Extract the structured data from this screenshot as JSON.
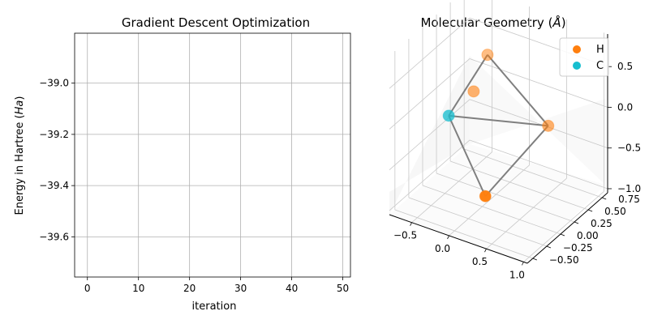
{
  "colors": {
    "hydrogen": "#ff7f0e",
    "carbon": "#17becf",
    "bond": "#7f7f7f",
    "grid": "#b0b0b0",
    "axis": "#000000"
  },
  "chart_data": [
    {
      "type": "line",
      "title": "Gradient Descent Optimization",
      "xlabel": "iteration",
      "ylabel": "Energy in Hartree",
      "ylabel_unit": "Ha",
      "xlim": [
        -2.5,
        51.5
      ],
      "ylim": [
        -39.757,
        -38.805
      ],
      "xticks": [
        0,
        10,
        20,
        30,
        40,
        50
      ],
      "xtick_labels": [
        "0",
        "10",
        "20",
        "30",
        "40",
        "50"
      ],
      "yticks": [
        -39.0,
        -39.2,
        -39.4,
        -39.6
      ],
      "ytick_labels": [
        "−39.0",
        "−39.2",
        "−39.4",
        "−39.6"
      ],
      "grid": true,
      "series": []
    },
    {
      "type": "scatter3d",
      "title": "Molecular Geometry",
      "title_unit": "Å",
      "legend": [
        {
          "label": "H",
          "color": "#ff7f0e"
        },
        {
          "label": "C",
          "color": "#17becf"
        }
      ],
      "legend_position": "top-right",
      "x_ticks": [
        -0.5,
        0.0,
        0.5,
        1.0
      ],
      "x_tick_labels": [
        "−0.5",
        "0.0",
        "0.5",
        "1.0"
      ],
      "y_ticks": [
        -0.5,
        -0.25,
        0.0,
        0.25,
        0.5,
        0.75
      ],
      "y_tick_labels": [
        "−0.50",
        "−0.25",
        "0.00",
        "0.25",
        "0.50",
        "0.75"
      ],
      "z_ticks": [
        -1.0,
        -0.5,
        0.0,
        0.5
      ],
      "z_tick_labels": [
        "−1.0",
        "−0.5",
        "0.0",
        "0.5"
      ],
      "xlim": [
        -0.8,
        1.05
      ],
      "ylim": [
        -0.6,
        0.85
      ],
      "zlim": [
        -1.05,
        0.9
      ],
      "atoms": [
        {
          "element": "H",
          "x": -0.45,
          "y": 0.7,
          "z": 0.25
        },
        {
          "element": "H",
          "x": 0.55,
          "y": 0.45,
          "z": -0.15
        },
        {
          "element": "H",
          "x": 0.45,
          "y": -0.55,
          "z": -0.45
        },
        {
          "element": "C",
          "x": -0.45,
          "y": 0.0,
          "z": -0.08
        },
        {
          "element": "H",
          "x": -0.45,
          "y": 0.45,
          "z": -0.05
        }
      ],
      "bonds": [
        [
          3,
          0
        ],
        [
          3,
          1
        ],
        [
          3,
          2
        ],
        [
          0,
          1
        ],
        [
          1,
          2
        ]
      ]
    }
  ]
}
